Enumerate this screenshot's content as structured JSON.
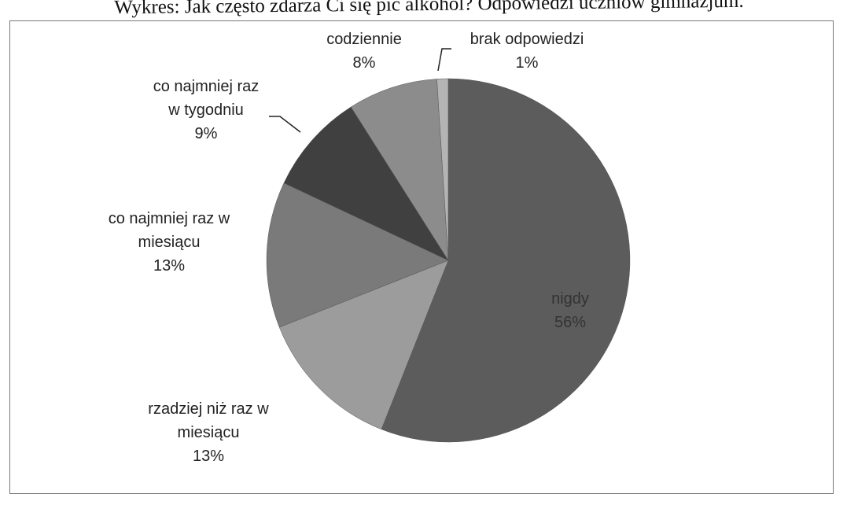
{
  "chart_data": {
    "type": "pie",
    "title": "Wykres: Jak często zdarza Ci się pić alkohol? Odpowiedzi uczniów gimnazjum.",
    "categories": [
      "nigdy",
      "rzadziej niż raz w miesiącu",
      "co najmniej raz w miesiącu",
      "co najmniej raz w tygodniu",
      "codziennie",
      "brak odpowiedzi"
    ],
    "values": [
      56,
      13,
      13,
      9,
      8,
      1
    ],
    "value_labels": [
      "56%",
      "13%",
      "13%",
      "9%",
      "8%",
      "1%"
    ],
    "colors": [
      "#5c5c5c",
      "#9c9c9c",
      "#7a7a7a",
      "#404040",
      "#8c8c8c",
      "#b4b4b4"
    ]
  }
}
